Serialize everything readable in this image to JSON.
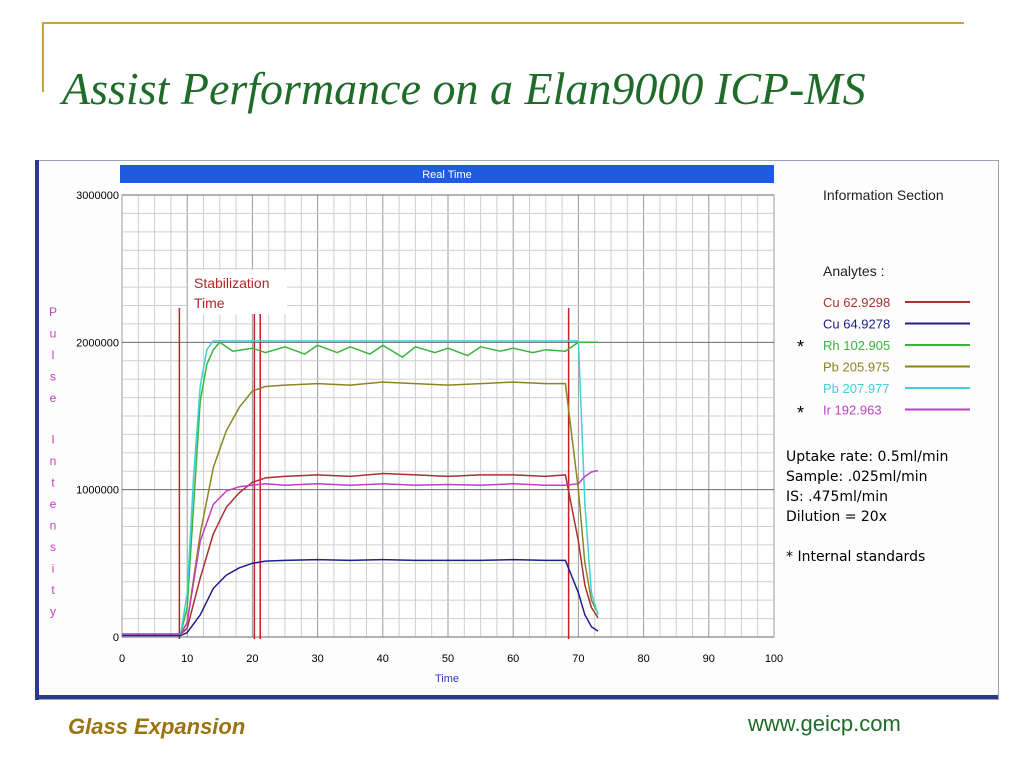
{
  "slide": {
    "title": "Assist Performance on a Elan9000 ICP-MS",
    "footer_left": "Glass Expansion",
    "footer_right": "www.geicp.com",
    "colors": {
      "title": "#1f6b2a",
      "frame": "#c8a23c",
      "footer_left": "#9a7410"
    }
  },
  "info_text": {
    "uptake": "Uptake rate: 0.5ml/min",
    "sample": "Sample: .025ml/min",
    "is": "IS: .475ml/min",
    "dilution": "Dilution = 20x",
    "note": "* Internal standards"
  },
  "chart_data": {
    "type": "line",
    "title": "Real Time",
    "xlabel": "Time",
    "ylabel": "Pulse Intensity",
    "xlim": [
      0,
      100
    ],
    "ylim": [
      0,
      3000000
    ],
    "x_ticks": [
      "0",
      "10",
      "20",
      "30",
      "40",
      "50",
      "60",
      "70",
      "80",
      "90",
      "100"
    ],
    "y_ticks": [
      "0",
      "1000000",
      "2000000",
      "3000000"
    ],
    "grid": true,
    "info_heading": "Information Section",
    "legend_heading": "Analytes :",
    "legend_placement": "right",
    "annotation": {
      "label_line1": "Stabilization",
      "label_line2": "Time",
      "x_start": 21,
      "x_end_marker": 68.5
    },
    "vlines": [
      {
        "x": 8.8,
        "color": "#c02020"
      },
      {
        "x": 20.3,
        "color": "#c02020"
      },
      {
        "x": 21.2,
        "color": "#c02020"
      },
      {
        "x": 68.5,
        "color": "#c02020"
      }
    ],
    "internal_standard_marks": [
      "*",
      "*"
    ],
    "series": [
      {
        "name": "Cu 62.9298",
        "color": "#a83232",
        "x": [
          0,
          9,
          10,
          12,
          14,
          16,
          18,
          20,
          22,
          25,
          30,
          35,
          40,
          45,
          50,
          55,
          60,
          65,
          68,
          70,
          71,
          72,
          73
        ],
        "y": [
          20000,
          20000,
          60000,
          400000,
          700000,
          880000,
          980000,
          1050000,
          1080000,
          1090000,
          1100000,
          1090000,
          1110000,
          1100000,
          1090000,
          1100000,
          1100000,
          1090000,
          1100000,
          650000,
          350000,
          200000,
          130000
        ]
      },
      {
        "name": "Cu 64.9278",
        "color": "#1e1e8c",
        "x": [
          0,
          9,
          10,
          12,
          14,
          16,
          18,
          20,
          22,
          25,
          30,
          35,
          40,
          45,
          50,
          55,
          60,
          65,
          68,
          70,
          71,
          72,
          73
        ],
        "y": [
          10000,
          10000,
          30000,
          150000,
          330000,
          420000,
          470000,
          500000,
          515000,
          520000,
          525000,
          520000,
          525000,
          520000,
          520000,
          520000,
          525000,
          520000,
          520000,
          300000,
          150000,
          70000,
          40000
        ]
      },
      {
        "name": "Rh 102.905",
        "color": "#3ab53a",
        "x": [
          0,
          9,
          10,
          11,
          12,
          13,
          14,
          15,
          17,
          20,
          22,
          25,
          28,
          30,
          33,
          35,
          38,
          40,
          43,
          45,
          48,
          50,
          53,
          55,
          58,
          60,
          63,
          65,
          68,
          70,
          73
        ],
        "y": [
          20000,
          20000,
          200000,
          900000,
          1600000,
          1850000,
          1950000,
          2000000,
          1940000,
          1960000,
          1930000,
          1970000,
          1920000,
          1980000,
          1930000,
          1970000,
          1920000,
          1980000,
          1900000,
          1970000,
          1930000,
          1960000,
          1910000,
          1970000,
          1940000,
          1960000,
          1930000,
          1950000,
          1940000,
          2000000,
          2000000
        ]
      },
      {
        "name": "Pb 205.975",
        "color": "#8c8420",
        "x": [
          0,
          9,
          10,
          12,
          14,
          16,
          18,
          20,
          22,
          25,
          30,
          35,
          40,
          45,
          50,
          55,
          60,
          65,
          68,
          70,
          71,
          72,
          73
        ],
        "y": [
          20000,
          20000,
          100000,
          700000,
          1150000,
          1400000,
          1560000,
          1670000,
          1700000,
          1710000,
          1720000,
          1710000,
          1730000,
          1720000,
          1710000,
          1720000,
          1730000,
          1720000,
          1720000,
          1000000,
          500000,
          250000,
          160000
        ]
      },
      {
        "name": "Pb 207.977",
        "color": "#40d0d8",
        "x": [
          0,
          9,
          10,
          11,
          12,
          13,
          14,
          20,
          30,
          40,
          50,
          60,
          68,
          70,
          71,
          72,
          73
        ],
        "y": [
          20000,
          20000,
          300000,
          1100000,
          1700000,
          1950000,
          2010000,
          2010000,
          2010000,
          2010000,
          2010000,
          2010000,
          2010000,
          2010000,
          900000,
          300000,
          150000
        ]
      },
      {
        "name": "Ir 192.963",
        "color": "#c040c0",
        "x": [
          0,
          9,
          10,
          12,
          14,
          16,
          18,
          20,
          22,
          25,
          30,
          35,
          40,
          45,
          50,
          55,
          60,
          65,
          68,
          70,
          71,
          72,
          73
        ],
        "y": [
          20000,
          20000,
          100000,
          650000,
          900000,
          990000,
          1020000,
          1030000,
          1040000,
          1030000,
          1040000,
          1030000,
          1040000,
          1030000,
          1035000,
          1030000,
          1040000,
          1030000,
          1030000,
          1040000,
          1090000,
          1120000,
          1130000
        ]
      }
    ]
  }
}
